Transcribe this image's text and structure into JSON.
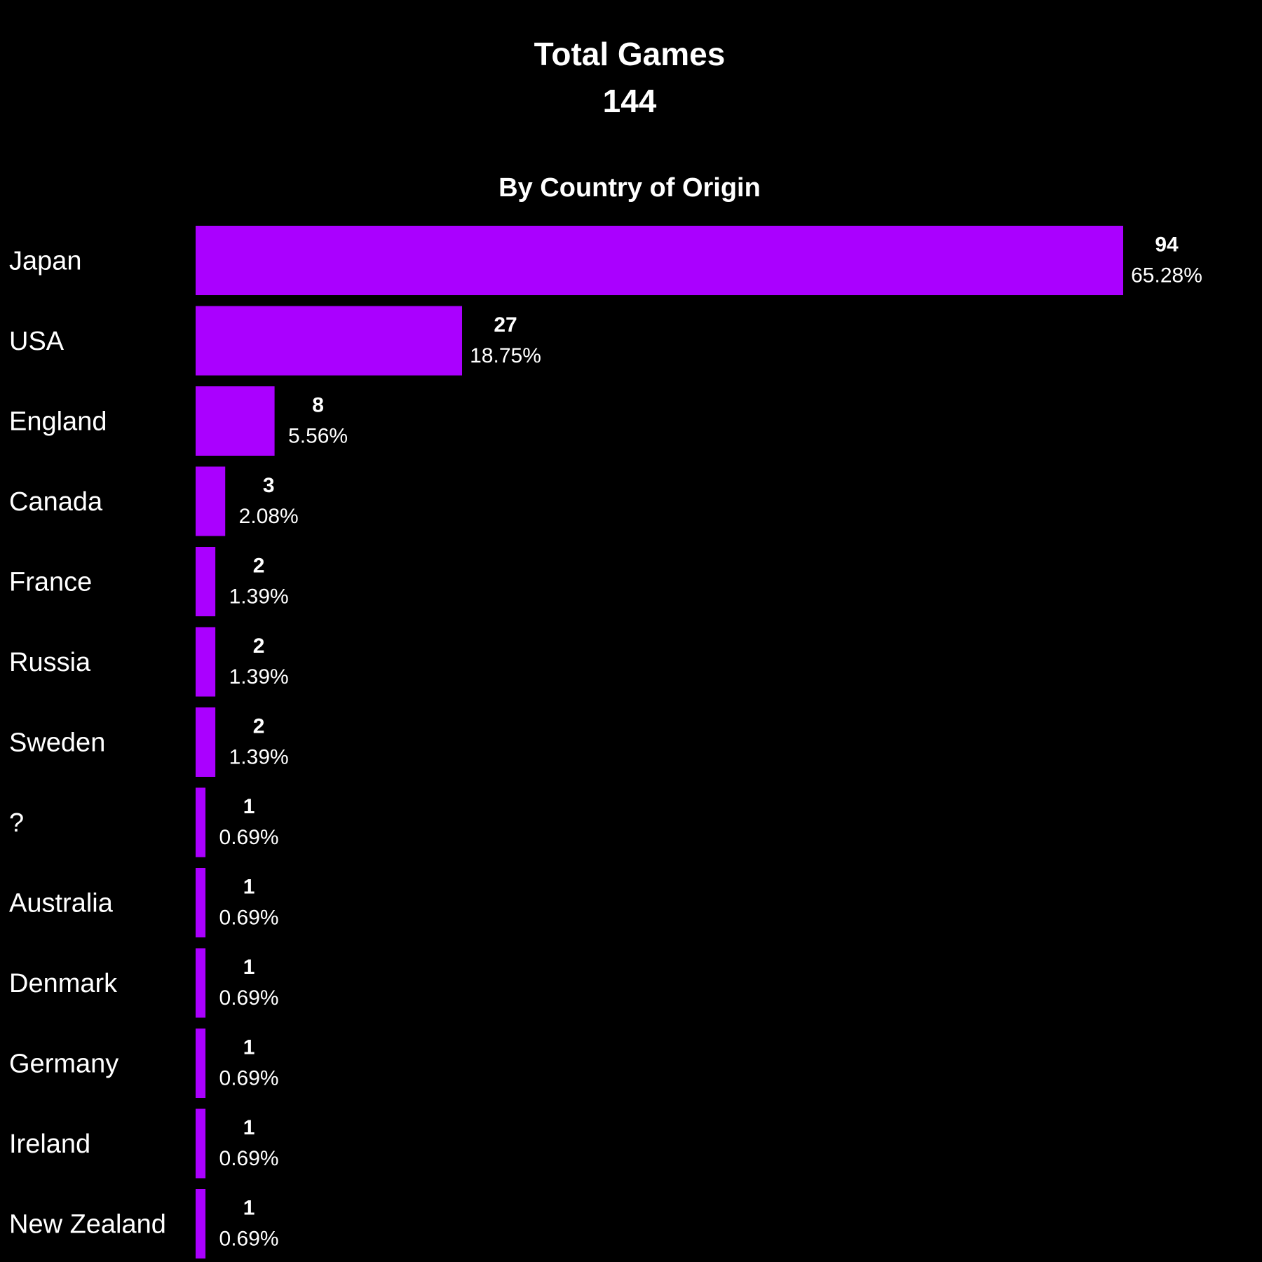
{
  "header": {
    "title": "Total Games",
    "total": "144",
    "subtitle": "By Country of Origin"
  },
  "colors": {
    "background": "#000000",
    "bar": "#AA00FF",
    "text": "#FFFFFF"
  },
  "chart_data": {
    "type": "bar",
    "orientation": "horizontal",
    "title": "Total Games",
    "subtitle": "By Country of Origin",
    "total": 144,
    "categories": [
      "Japan",
      "USA",
      "England",
      "Canada",
      "France",
      "Russia",
      "Sweden",
      "?",
      "Australia",
      "Denmark",
      "Germany",
      "Ireland",
      "New Zealand"
    ],
    "values": [
      94,
      27,
      8,
      3,
      2,
      2,
      2,
      1,
      1,
      1,
      1,
      1,
      1
    ],
    "value_labels": [
      "94",
      "27",
      "8",
      "3",
      "2",
      "2",
      "2",
      "1",
      "1",
      "1",
      "1",
      "1",
      "1"
    ],
    "percent_labels": [
      "65.28%",
      "18.75%",
      "5.56%",
      "2.08%",
      "1.39%",
      "1.39%",
      "1.39%",
      "0.69%",
      "0.69%",
      "0.69%",
      "0.69%",
      "0.69%",
      "0.69%"
    ],
    "xlim": [
      0,
      94
    ],
    "grid": false,
    "legend": "none"
  }
}
